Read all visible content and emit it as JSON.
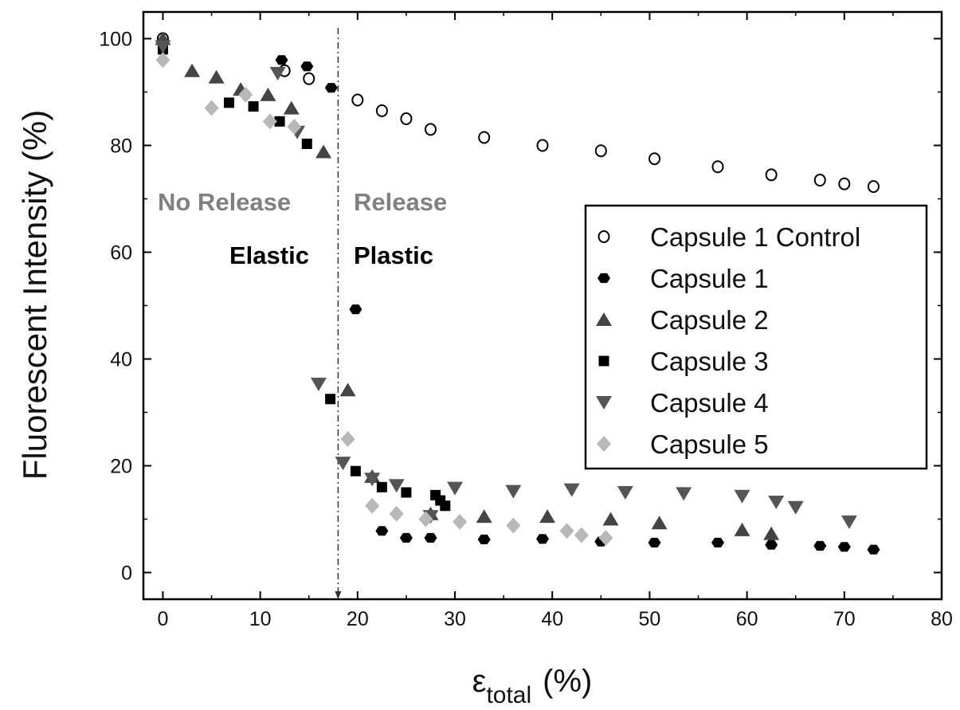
{
  "chart_data": {
    "type": "scatter",
    "title": "",
    "xlabel": "ε",
    "xlabel_sub": "total",
    "xlabel_unit": "(%)",
    "ylabel": "Fluorescent Intensity (%)",
    "xlim": [
      -2,
      80
    ],
    "ylim": [
      -5,
      105
    ],
    "xticks": [
      0,
      10,
      20,
      30,
      40,
      50,
      60,
      70,
      80
    ],
    "yticks": [
      0,
      20,
      40,
      60,
      80,
      100
    ],
    "grid": false,
    "legend_position": "right",
    "annotations": {
      "threshold_x": 18,
      "left_top": "No Release",
      "left_bottom": "Elastic",
      "right_top": "Release",
      "right_bottom": "Plastic"
    },
    "series": [
      {
        "name": "Capsule 1 Control",
        "marker": "open-circle",
        "color": "#000000",
        "points": [
          [
            0,
            100
          ],
          [
            12.5,
            94
          ],
          [
            15,
            92.5
          ],
          [
            20,
            88.5
          ],
          [
            22.5,
            86.5
          ],
          [
            25,
            85
          ],
          [
            27.5,
            83
          ],
          [
            33,
            81.5
          ],
          [
            39,
            80
          ],
          [
            45,
            79
          ],
          [
            50.5,
            77.5
          ],
          [
            57,
            76
          ],
          [
            62.5,
            74.5
          ],
          [
            67.5,
            73.5
          ],
          [
            70,
            72.8
          ],
          [
            73,
            72.3
          ]
        ]
      },
      {
        "name": "Capsule 1",
        "marker": "filled-hexagon",
        "color": "#000000",
        "points": [
          [
            12.2,
            96
          ],
          [
            14.8,
            94.8
          ],
          [
            17.3,
            90.8
          ],
          [
            19.8,
            49.3
          ],
          [
            22.5,
            7.8
          ],
          [
            25,
            6.5
          ],
          [
            27.5,
            6.5
          ],
          [
            33,
            6.2
          ],
          [
            39,
            6.3
          ],
          [
            45,
            5.8
          ],
          [
            50.5,
            5.6
          ],
          [
            57,
            5.6
          ],
          [
            62.5,
            5.2
          ],
          [
            67.5,
            5.0
          ],
          [
            70,
            4.8
          ],
          [
            73,
            4.3
          ]
        ]
      },
      {
        "name": "Capsule 2",
        "marker": "triangle-up",
        "color": "#444444",
        "points": [
          [
            0,
            100
          ],
          [
            3,
            94
          ],
          [
            5.5,
            92.8
          ],
          [
            8,
            90.5
          ],
          [
            10.8,
            89.5
          ],
          [
            13.2,
            87
          ],
          [
            16.5,
            78.8
          ],
          [
            19,
            34.2
          ],
          [
            21.5,
            18
          ],
          [
            27.5,
            11
          ],
          [
            33,
            10.5
          ],
          [
            39.5,
            10.5
          ],
          [
            46,
            10
          ],
          [
            51,
            9.3
          ],
          [
            59.5,
            8
          ],
          [
            62.5,
            7.3
          ]
        ]
      },
      {
        "name": "Capsule 3",
        "marker": "square",
        "color": "#000000",
        "points": [
          [
            0,
            98
          ],
          [
            6.8,
            88
          ],
          [
            9.3,
            87.3
          ],
          [
            12,
            84.5
          ],
          [
            14.8,
            80.3
          ],
          [
            17.2,
            32.5
          ],
          [
            19.8,
            19
          ],
          [
            22.5,
            16
          ],
          [
            25,
            15
          ],
          [
            28,
            14.5
          ],
          [
            28.5,
            13.5
          ],
          [
            29,
            12.5
          ]
        ]
      },
      {
        "name": "Capsule 4",
        "marker": "triangle-down",
        "color": "#555555",
        "points": [
          [
            0,
            98.5
          ],
          [
            11.8,
            93.5
          ],
          [
            13.8,
            82.5
          ],
          [
            16,
            35.3
          ],
          [
            18.5,
            20.5
          ],
          [
            21.5,
            17.5
          ],
          [
            24,
            16.3
          ],
          [
            27.5,
            10.5
          ],
          [
            30,
            15.8
          ],
          [
            36,
            15.2
          ],
          [
            42,
            15.5
          ],
          [
            47.5,
            15
          ],
          [
            53.5,
            14.8
          ],
          [
            59.5,
            14.3
          ],
          [
            63,
            13.2
          ],
          [
            65,
            12.2
          ],
          [
            70.5,
            9.5
          ]
        ]
      },
      {
        "name": "Capsule 5",
        "marker": "diamond",
        "color": "#b8b8b8",
        "points": [
          [
            0,
            96
          ],
          [
            5,
            87
          ],
          [
            8.5,
            89.5
          ],
          [
            11,
            84.5
          ],
          [
            13.5,
            83.5
          ],
          [
            19,
            25
          ],
          [
            21.5,
            12.5
          ],
          [
            24,
            11
          ],
          [
            27,
            10
          ],
          [
            30.5,
            9.5
          ],
          [
            36,
            8.8
          ],
          [
            41.5,
            7.8
          ],
          [
            43,
            7
          ],
          [
            45.5,
            6.5
          ]
        ]
      }
    ]
  }
}
